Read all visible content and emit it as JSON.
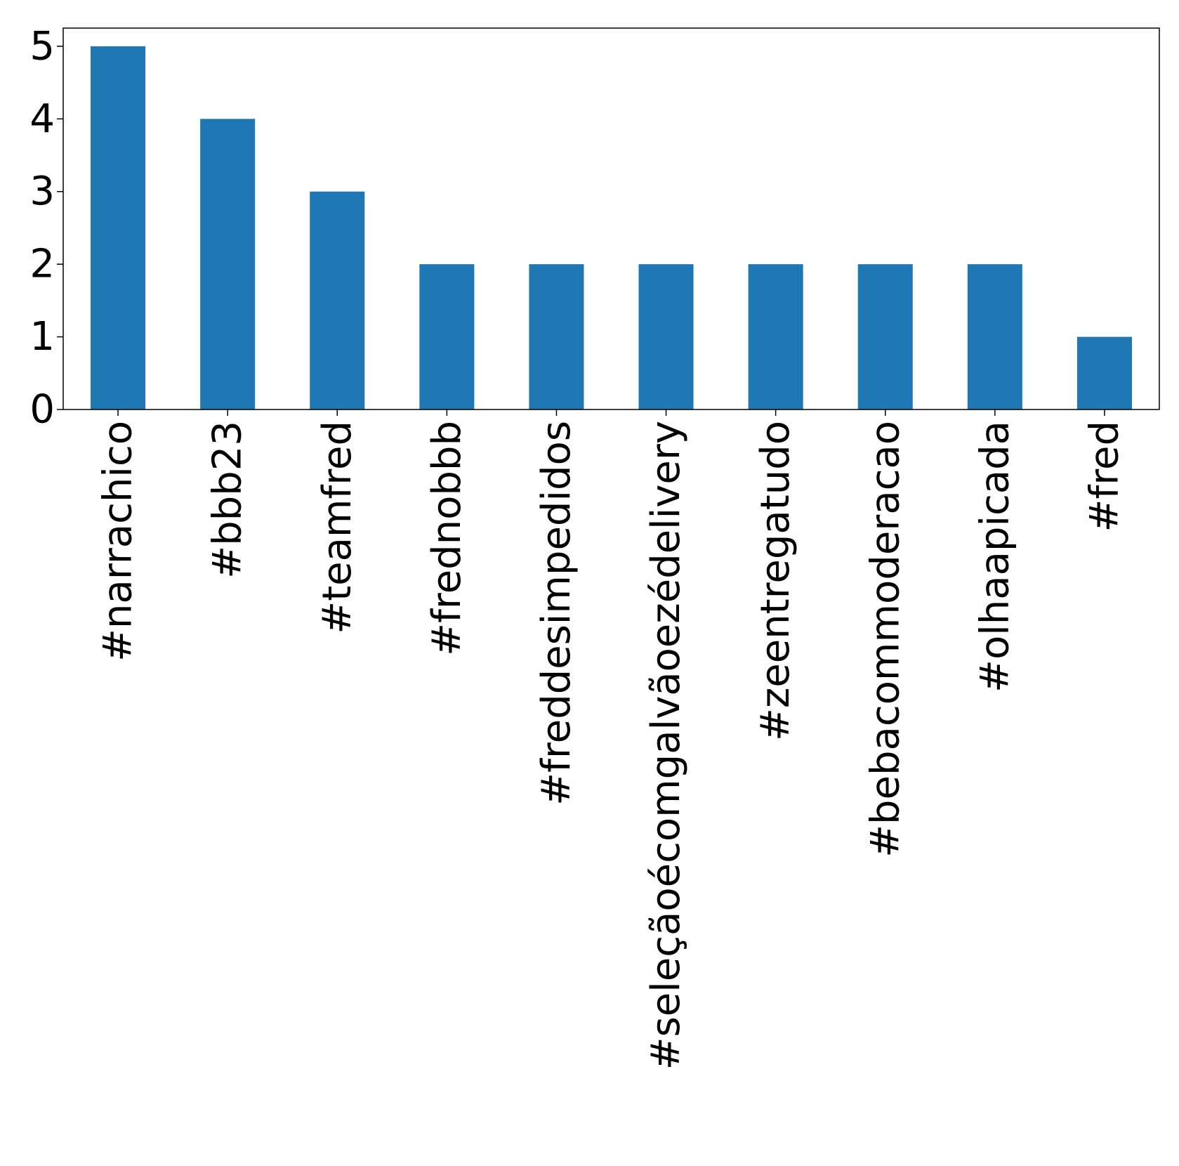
{
  "chart_data": {
    "type": "bar",
    "categories": [
      "#narrachico",
      "#bbb23",
      "#teamfred",
      "#frednobbb",
      "#freddesimpedidos",
      "#seleçãoécomgalvãoezédelivery",
      "#zeentregatudo",
      "#bebacommoderacao",
      "#olhaapicada",
      "#fred"
    ],
    "values": [
      5,
      4,
      3,
      2,
      2,
      2,
      2,
      2,
      2,
      1
    ],
    "yticks": [
      "0",
      "1",
      "2",
      "3",
      "4",
      "5"
    ],
    "ylim": [
      0,
      5.25
    ],
    "title": "",
    "xlabel": "",
    "ylabel": "",
    "grid": false,
    "bar_color": "#1f77b4"
  }
}
